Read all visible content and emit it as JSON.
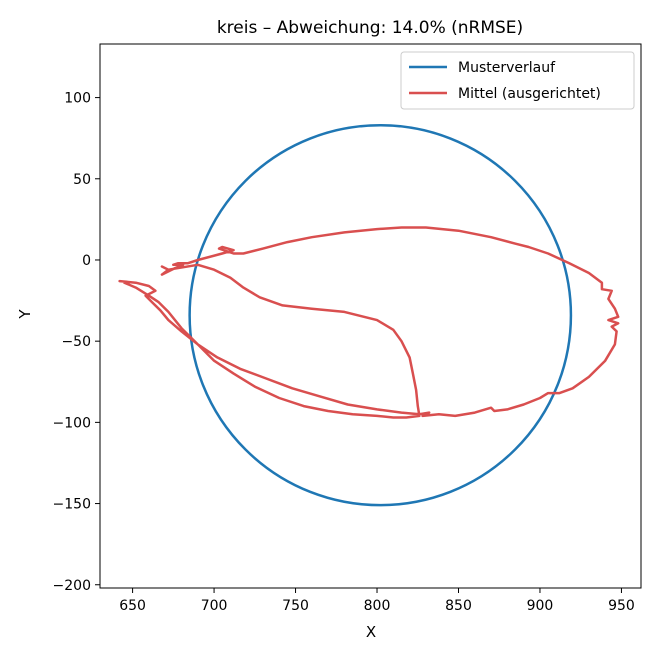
{
  "chart_data": {
    "type": "line",
    "title": "kreis – Abweichung: 14.0% (nRMSE)",
    "xlabel": "X",
    "ylabel": "Y",
    "xlim": [
      630,
      962
    ],
    "ylim": [
      -202,
      133
    ],
    "xticks": [
      650,
      700,
      750,
      800,
      850,
      900,
      950
    ],
    "yticks": [
      100,
      50,
      0,
      -50,
      -100,
      -150,
      -200
    ],
    "grid": false,
    "legend_position": "top-right",
    "series": [
      {
        "name": "Musterverlauf",
        "color": "#1f77b4",
        "shape": "circle",
        "center": [
          802,
          -34
        ],
        "radius": 117
      },
      {
        "name": "Mittel (ausgerichtet)",
        "color": "#d94f4f",
        "points": [
          [
            642,
            -13
          ],
          [
            652,
            -14
          ],
          [
            660,
            -16
          ],
          [
            664,
            -19
          ],
          [
            658,
            -22
          ],
          [
            662,
            -26
          ],
          [
            667,
            -31
          ],
          [
            672,
            -37
          ],
          [
            680,
            -44
          ],
          [
            690,
            -52
          ],
          [
            702,
            -60
          ],
          [
            716,
            -67
          ],
          [
            732,
            -73
          ],
          [
            748,
            -79
          ],
          [
            765,
            -84
          ],
          [
            782,
            -89
          ],
          [
            800,
            -92
          ],
          [
            815,
            -94
          ],
          [
            826,
            -95
          ],
          [
            832,
            -94
          ],
          [
            828,
            -96
          ],
          [
            838,
            -95
          ],
          [
            848,
            -96
          ],
          [
            860,
            -94
          ],
          [
            870,
            -91
          ],
          [
            872,
            -93
          ],
          [
            880,
            -92
          ],
          [
            890,
            -89
          ],
          [
            900,
            -85
          ],
          [
            905,
            -82
          ],
          [
            912,
            -82
          ],
          [
            920,
            -79
          ],
          [
            930,
            -72
          ],
          [
            940,
            -62
          ],
          [
            946,
            -52
          ],
          [
            947,
            -44
          ],
          [
            944,
            -41
          ],
          [
            948,
            -39
          ],
          [
            942,
            -37
          ],
          [
            948,
            -35
          ],
          [
            946,
            -30
          ],
          [
            942,
            -24
          ],
          [
            944,
            -19
          ],
          [
            938,
            -18
          ],
          [
            938,
            -14
          ],
          [
            930,
            -8
          ],
          [
            918,
            -2
          ],
          [
            905,
            4
          ],
          [
            893,
            8
          ],
          [
            885,
            10
          ],
          [
            870,
            14
          ],
          [
            850,
            18
          ],
          [
            830,
            20
          ],
          [
            815,
            20
          ],
          [
            800,
            19
          ],
          [
            780,
            17
          ],
          [
            760,
            14
          ],
          [
            745,
            11
          ],
          [
            730,
            7
          ],
          [
            718,
            4
          ],
          [
            712,
            4
          ],
          [
            703,
            7
          ],
          [
            705,
            8
          ],
          [
            712,
            6
          ],
          [
            705,
            4
          ],
          [
            690,
            0
          ],
          [
            684,
            -2
          ],
          [
            678,
            -2
          ],
          [
            675,
            -3
          ],
          [
            681,
            -3
          ],
          [
            676,
            -5
          ],
          [
            668,
            -9
          ],
          [
            672,
            -6
          ],
          [
            668,
            -4
          ],
          [
            672,
            -6
          ],
          [
            690,
            -3
          ],
          [
            700,
            -6
          ],
          [
            710,
            -11
          ],
          [
            718,
            -17
          ],
          [
            728,
            -23
          ],
          [
            742,
            -28
          ],
          [
            760,
            -30
          ],
          [
            780,
            -32
          ],
          [
            800,
            -37
          ],
          [
            810,
            -43
          ],
          [
            815,
            -50
          ],
          [
            820,
            -60
          ],
          [
            822,
            -70
          ],
          [
            824,
            -80
          ],
          [
            825,
            -90
          ],
          [
            826,
            -96
          ],
          [
            818,
            -97
          ],
          [
            810,
            -97
          ],
          [
            800,
            -96
          ],
          [
            785,
            -95
          ],
          [
            770,
            -93
          ],
          [
            755,
            -90
          ],
          [
            740,
            -85
          ],
          [
            725,
            -78
          ],
          [
            712,
            -70
          ],
          [
            700,
            -62
          ],
          [
            690,
            -52
          ],
          [
            680,
            -42
          ],
          [
            672,
            -32
          ],
          [
            666,
            -26
          ],
          [
            660,
            -22
          ],
          [
            652,
            -17
          ],
          [
            645,
            -14
          ]
        ]
      }
    ]
  }
}
